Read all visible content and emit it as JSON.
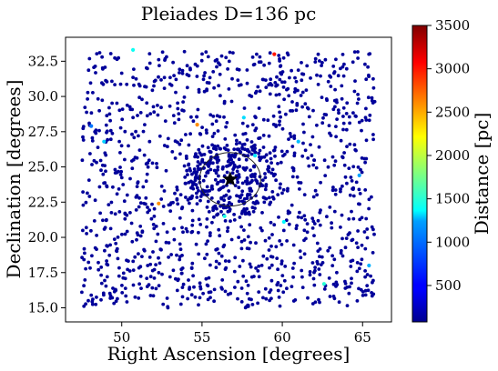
{
  "chart_data": {
    "type": "scatter",
    "title": "Pleiades  D=136 pc",
    "xlabel": "Right Ascension [degrees]",
    "ylabel": "Declination [degrees]",
    "xlim": [
      46.5,
      66.8
    ],
    "ylim": [
      14.0,
      34.2
    ],
    "xticks": [
      50,
      55,
      60,
      65
    ],
    "yticks": [
      15.0,
      17.5,
      20.0,
      22.5,
      25.0,
      27.5,
      30.0,
      32.5
    ],
    "grid": false,
    "colormap": "jet",
    "colorbar": {
      "label": "Distance [pc]",
      "range": [
        80,
        3500
      ],
      "ticks": [
        500,
        1000,
        1500,
        2000,
        2500,
        3000,
        3500
      ]
    },
    "field_points": {
      "count": 1500,
      "x_range": [
        47.5,
        65.8
      ],
      "y_range": [
        15.0,
        33.2
      ],
      "dominant_distance": 120,
      "dominant_color": "#00009a"
    },
    "highlighted_points": [
      {
        "x": 50.7,
        "y": 33.3,
        "distance": 1400
      },
      {
        "x": 59.5,
        "y": 33.0,
        "distance": 3000
      },
      {
        "x": 48.1,
        "y": 27.9,
        "distance": 900
      },
      {
        "x": 48.9,
        "y": 26.8,
        "distance": 1200
      },
      {
        "x": 54.7,
        "y": 28.0,
        "distance": 2600
      },
      {
        "x": 57.6,
        "y": 28.5,
        "distance": 1250
      },
      {
        "x": 58.3,
        "y": 25.8,
        "distance": 1300
      },
      {
        "x": 61.0,
        "y": 26.8,
        "distance": 1150
      },
      {
        "x": 64.8,
        "y": 24.4,
        "distance": 1050
      },
      {
        "x": 56.4,
        "y": 21.5,
        "distance": 1450
      },
      {
        "x": 65.4,
        "y": 18.0,
        "distance": 1100
      },
      {
        "x": 62.6,
        "y": 16.7,
        "distance": 1500
      },
      {
        "x": 60.1,
        "y": 21.1,
        "distance": 1350
      },
      {
        "x": 52.3,
        "y": 22.4,
        "distance": 2600
      }
    ],
    "cluster": {
      "center_x": 56.75,
      "center_y": 24.12,
      "marker": "star",
      "radius_deg": 1.9,
      "distance": 136
    }
  }
}
